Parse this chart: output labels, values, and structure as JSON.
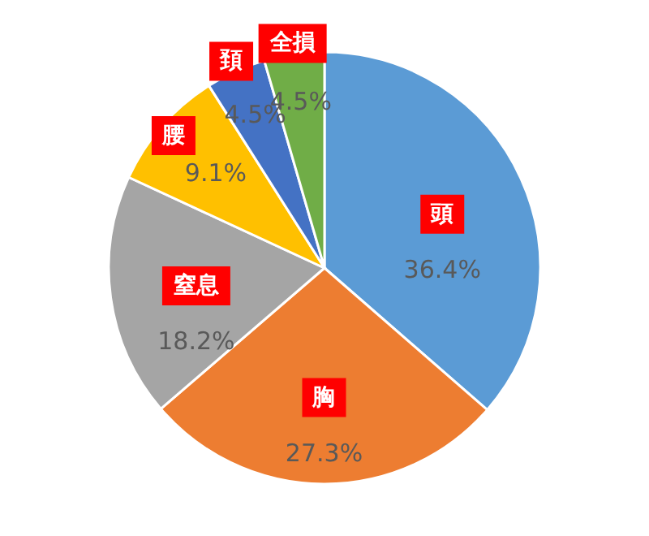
{
  "chart_data": {
    "type": "pie",
    "categories": [
      "頭",
      "胸",
      "窒息",
      "腰",
      "頚",
      "全損"
    ],
    "values": [
      36.4,
      27.3,
      18.2,
      9.1,
      4.5,
      4.5
    ],
    "colors": [
      "#5b9bd5",
      "#ed7d31",
      "#a5a5a5",
      "#ffc000",
      "#4472c4",
      "#70ad47"
    ],
    "value_labels": [
      "36.4%",
      "27.3%",
      "18.2%",
      "9.1%",
      "4.5%",
      "4.5%"
    ]
  }
}
